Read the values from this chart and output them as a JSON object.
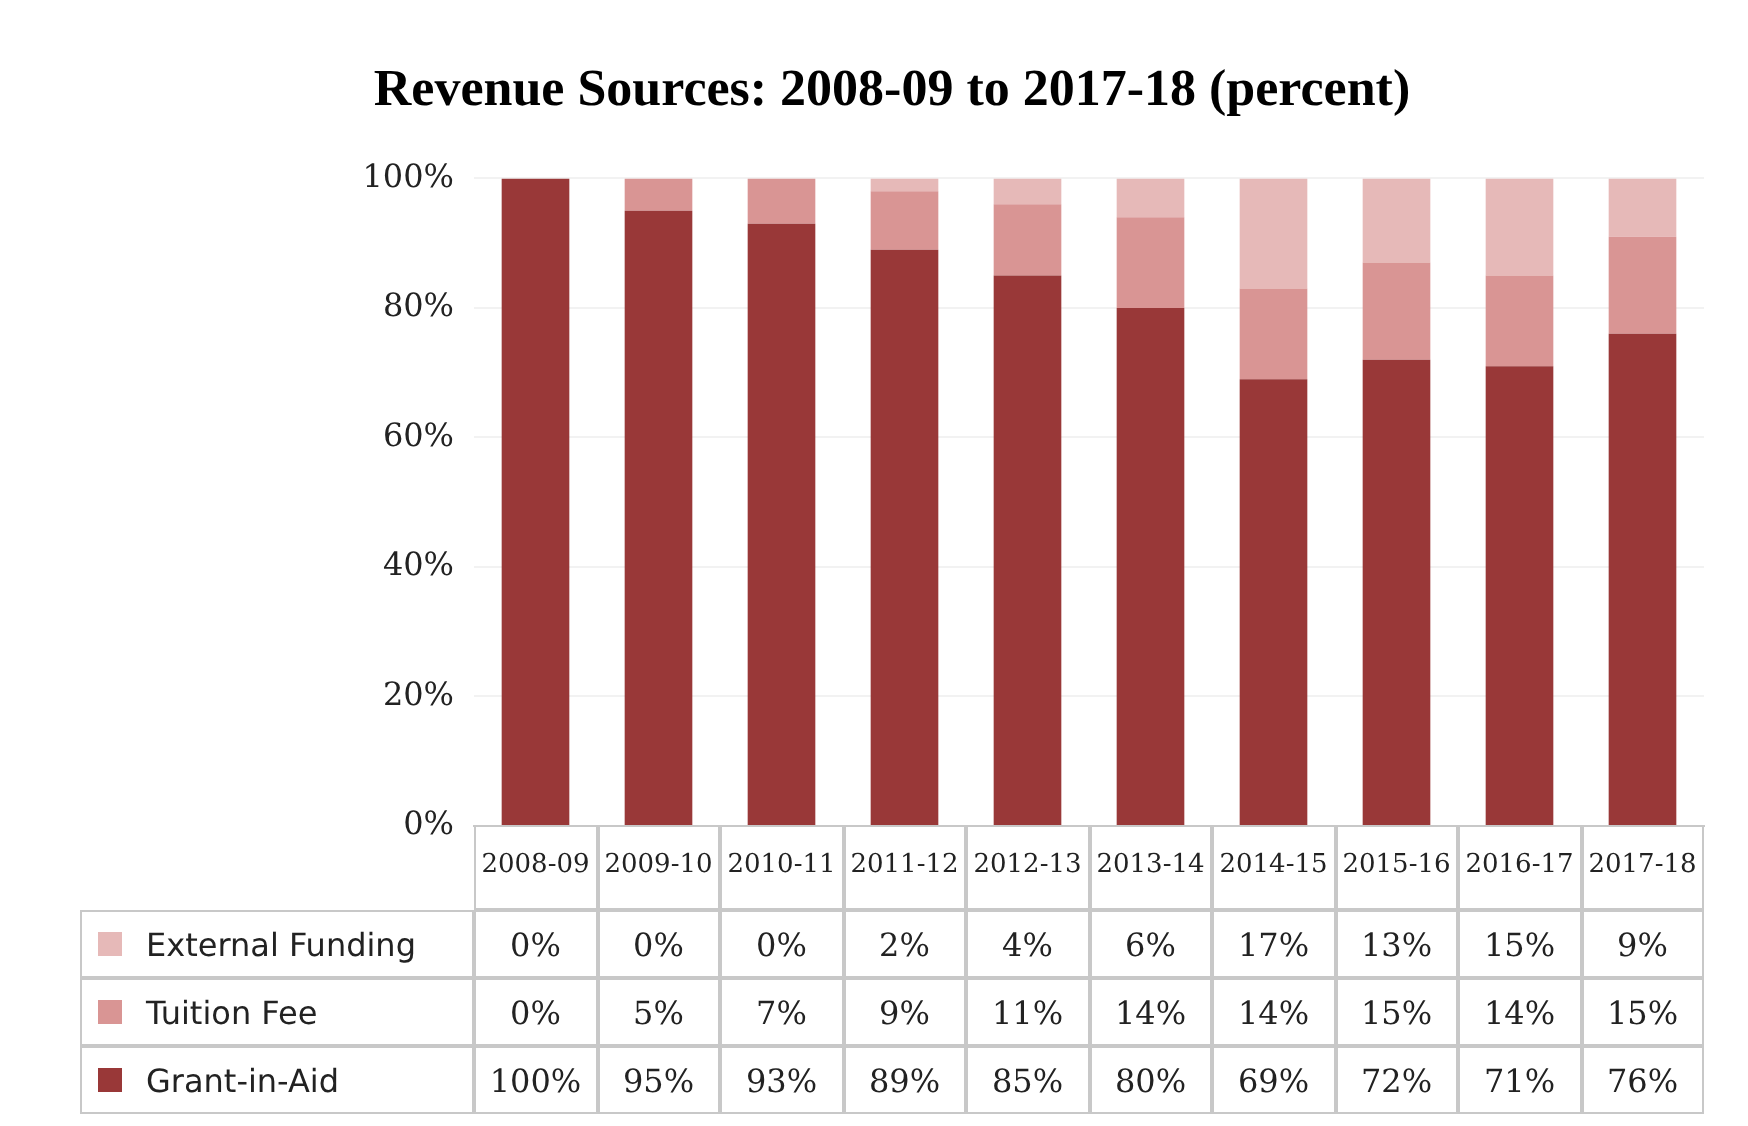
{
  "chart_data": {
    "type": "bar",
    "title": "Revenue Sources: 2008-09 to 2017-18 (percent)",
    "stacked": true,
    "data_labels": true,
    "legend": "bottom",
    "grid": "y",
    "categories": [
      "2008-09",
      "2009-10",
      "2010-11",
      "2011-12",
      "2012-13",
      "2013-14",
      "2014-15",
      "2015-16",
      "2016-17",
      "2017-18"
    ],
    "ylim": [
      0,
      100
    ],
    "yticks": [
      {
        "value": 0,
        "label": "0%"
      },
      {
        "value": 20,
        "label": "20%"
      },
      {
        "value": 40,
        "label": "40%"
      },
      {
        "value": 60,
        "label": "60%"
      },
      {
        "value": 80,
        "label": "80%"
      },
      {
        "value": 100,
        "label": "100%"
      }
    ],
    "series": [
      {
        "name": "Grant-in-Aid",
        "color": "#993838",
        "values": [
          100,
          95,
          93,
          89,
          85,
          80,
          69,
          72,
          71,
          76
        ],
        "value_labels": [
          "100%",
          "95%",
          "93%",
          "89%",
          "85%",
          "80%",
          "69%",
          "72%",
          "71%",
          "76%"
        ]
      },
      {
        "name": "Tuition Fee",
        "color": "#d99594",
        "values": [
          0,
          5,
          7,
          9,
          11,
          14,
          14,
          15,
          14,
          15
        ],
        "value_labels": [
          "0%",
          "5%",
          "7%",
          "9%",
          "11%",
          "14%",
          "14%",
          "15%",
          "14%",
          "15%"
        ]
      },
      {
        "name": "External Funding",
        "color": "#e6b9b8",
        "values": [
          0,
          0,
          0,
          2,
          4,
          6,
          17,
          13,
          15,
          9
        ],
        "value_labels": [
          "0%",
          "0%",
          "0%",
          "2%",
          "4%",
          "6%",
          "17%",
          "13%",
          "15%",
          "9%"
        ]
      }
    ]
  }
}
